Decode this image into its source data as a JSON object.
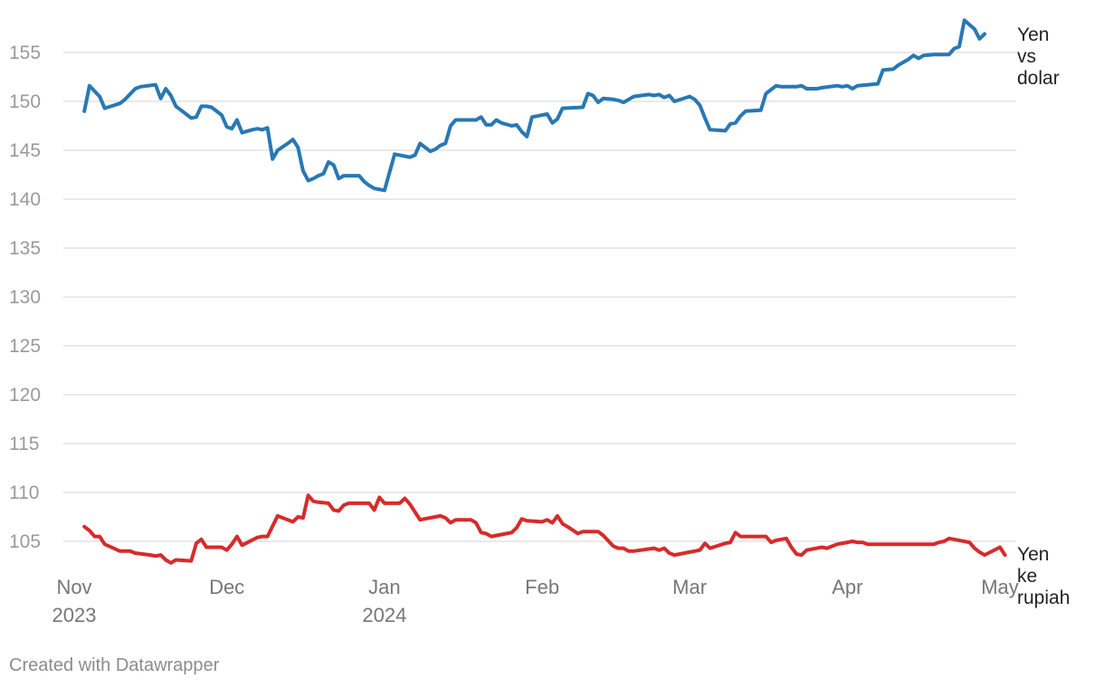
{
  "chart_data": {
    "type": "line",
    "title": "",
    "xlabel": "",
    "ylabel": "",
    "ylim": [
      101,
      159
    ],
    "yticks": [
      105,
      110,
      115,
      120,
      125,
      130,
      135,
      140,
      145,
      150,
      155
    ],
    "xlim": [
      0,
      182
    ],
    "xticks": [
      {
        "x": 0,
        "label": "Nov",
        "sublabel": "2023"
      },
      {
        "x": 30,
        "label": "Dec",
        "sublabel": ""
      },
      {
        "x": 61,
        "label": "Jan",
        "sublabel": "2024"
      },
      {
        "x": 92,
        "label": "Feb",
        "sublabel": ""
      },
      {
        "x": 121,
        "label": "Mar",
        "sublabel": ""
      },
      {
        "x": 152,
        "label": "Apr",
        "sublabel": ""
      },
      {
        "x": 182,
        "label": "May",
        "sublabel": ""
      }
    ],
    "grid": true,
    "series": [
      {
        "name": "Yen vs dolar",
        "label_lines": [
          "Yen",
          "vs",
          "dolar"
        ],
        "color": "#2878b4",
        "points": [
          [
            2,
            149
          ],
          [
            3,
            151.6
          ],
          [
            5,
            150.5
          ],
          [
            6,
            149.3
          ],
          [
            9,
            149.8
          ],
          [
            10,
            150.2
          ],
          [
            12,
            151.3
          ],
          [
            13,
            151.5
          ],
          [
            16,
            151.7
          ],
          [
            17,
            150.3
          ],
          [
            18,
            151.3
          ],
          [
            19,
            150.6
          ],
          [
            20,
            149.5
          ],
          [
            21,
            149.1
          ],
          [
            23,
            148.3
          ],
          [
            24,
            148.4
          ],
          [
            25,
            149.5
          ],
          [
            26,
            149.5
          ],
          [
            27,
            149.4
          ],
          [
            29,
            148.6
          ],
          [
            30,
            147.4
          ],
          [
            31,
            147.2
          ],
          [
            32,
            148.1
          ],
          [
            33,
            146.8
          ],
          [
            35,
            147.1
          ],
          [
            36,
            147.2
          ],
          [
            37,
            147.1
          ],
          [
            38,
            147.3
          ],
          [
            39,
            144.1
          ],
          [
            40,
            145
          ],
          [
            42,
            145.7
          ],
          [
            43,
            146.1
          ],
          [
            44,
            145.3
          ],
          [
            45,
            142.9
          ],
          [
            46,
            141.9
          ],
          [
            47,
            142.1
          ],
          [
            48,
            142.4
          ],
          [
            49,
            142.6
          ],
          [
            50,
            143.8
          ],
          [
            51,
            143.5
          ],
          [
            52,
            142.1
          ],
          [
            53,
            142.4
          ],
          [
            56,
            142.4
          ],
          [
            57,
            141.8
          ],
          [
            58,
            141.4
          ],
          [
            59,
            141.1
          ],
          [
            61,
            140.9
          ],
          [
            63,
            144.6
          ],
          [
            64,
            144.5
          ],
          [
            66,
            144.3
          ],
          [
            67,
            144.5
          ],
          [
            68,
            145.7
          ],
          [
            69,
            145.3
          ],
          [
            70,
            144.9
          ],
          [
            71,
            145.1
          ],
          [
            72,
            145.5
          ],
          [
            73,
            145.7
          ],
          [
            74,
            147.5
          ],
          [
            75,
            148.1
          ],
          [
            79,
            148.1
          ],
          [
            80,
            148.4
          ],
          [
            81,
            147.6
          ],
          [
            82,
            147.6
          ],
          [
            83,
            148.1
          ],
          [
            84,
            147.8
          ],
          [
            86,
            147.5
          ],
          [
            87,
            147.6
          ],
          [
            88,
            146.9
          ],
          [
            89,
            146.4
          ],
          [
            90,
            148.4
          ],
          [
            93,
            148.7
          ],
          [
            94,
            147.8
          ],
          [
            95,
            148.2
          ],
          [
            96,
            149.3
          ],
          [
            100,
            149.4
          ],
          [
            101,
            150.8
          ],
          [
            102,
            150.6
          ],
          [
            103,
            149.9
          ],
          [
            104,
            150.3
          ],
          [
            106,
            150.2
          ],
          [
            107,
            150.1
          ],
          [
            108,
            149.9
          ],
          [
            110,
            150.5
          ],
          [
            113,
            150.7
          ],
          [
            114,
            150.6
          ],
          [
            115,
            150.7
          ],
          [
            116,
            150.4
          ],
          [
            117,
            150.6
          ],
          [
            118,
            150
          ],
          [
            121,
            150.5
          ],
          [
            122,
            150.2
          ],
          [
            123,
            149.6
          ],
          [
            124,
            148.3
          ],
          [
            125,
            147.1
          ],
          [
            128,
            147
          ],
          [
            129,
            147.7
          ],
          [
            130,
            147.8
          ],
          [
            131,
            148.5
          ],
          [
            132,
            149
          ],
          [
            135,
            149.1
          ],
          [
            136,
            150.8
          ],
          [
            137,
            151.2
          ],
          [
            138,
            151.6
          ],
          [
            139,
            151.5
          ],
          [
            142,
            151.5
          ],
          [
            143,
            151.6
          ],
          [
            144,
            151.3
          ],
          [
            146,
            151.3
          ],
          [
            147,
            151.4
          ],
          [
            150,
            151.6
          ],
          [
            151,
            151.5
          ],
          [
            152,
            151.6
          ],
          [
            153,
            151.3
          ],
          [
            154,
            151.6
          ],
          [
            158,
            151.8
          ],
          [
            159,
            153.2
          ],
          [
            161,
            153.3
          ],
          [
            162,
            153.7
          ],
          [
            164,
            154.3
          ],
          [
            165,
            154.7
          ],
          [
            166,
            154.4
          ],
          [
            167,
            154.7
          ],
          [
            169,
            154.8
          ],
          [
            170,
            154.8
          ],
          [
            172,
            154.8
          ],
          [
            173,
            155.4
          ],
          [
            174,
            155.6
          ],
          [
            175,
            158.3
          ],
          [
            177,
            157.4
          ],
          [
            178,
            156.4
          ],
          [
            179,
            156.9
          ]
        ]
      },
      {
        "name": "Yen ke rupiah",
        "label_lines": [
          "Yen",
          "ke",
          "rupiah"
        ],
        "color": "#d62b2b",
        "points": [
          [
            2,
            106.5
          ],
          [
            3,
            106.1
          ],
          [
            4,
            105.5
          ],
          [
            5,
            105.5
          ],
          [
            6,
            104.7
          ],
          [
            9,
            104
          ],
          [
            10,
            104
          ],
          [
            11,
            104
          ],
          [
            12,
            103.8
          ],
          [
            15,
            103.6
          ],
          [
            16,
            103.5
          ],
          [
            17,
            103.6
          ],
          [
            18,
            103.1
          ],
          [
            19,
            102.8
          ],
          [
            20,
            103.1
          ],
          [
            23,
            103
          ],
          [
            24,
            104.8
          ],
          [
            25,
            105.2
          ],
          [
            26,
            104.4
          ],
          [
            29,
            104.4
          ],
          [
            30,
            104.1
          ],
          [
            31,
            104.7
          ],
          [
            32,
            105.5
          ],
          [
            33,
            104.6
          ],
          [
            36,
            105.4
          ],
          [
            37,
            105.5
          ],
          [
            38,
            105.5
          ],
          [
            40,
            107.6
          ],
          [
            42,
            107.2
          ],
          [
            43,
            107
          ],
          [
            44,
            107.5
          ],
          [
            45,
            107.4
          ],
          [
            46,
            109.7
          ],
          [
            47,
            109.1
          ],
          [
            48,
            109
          ],
          [
            50,
            108.9
          ],
          [
            51,
            108.2
          ],
          [
            52,
            108.1
          ],
          [
            53,
            108.7
          ],
          [
            54,
            108.9
          ],
          [
            58,
            108.9
          ],
          [
            59,
            108.2
          ],
          [
            60,
            109.5
          ],
          [
            61,
            108.9
          ],
          [
            64,
            108.9
          ],
          [
            65,
            109.4
          ],
          [
            66,
            108.8
          ],
          [
            68,
            107.2
          ],
          [
            72,
            107.6
          ],
          [
            73,
            107.4
          ],
          [
            74,
            106.9
          ],
          [
            75,
            107.2
          ],
          [
            78,
            107.2
          ],
          [
            79,
            106.9
          ],
          [
            80,
            105.9
          ],
          [
            81,
            105.8
          ],
          [
            82,
            105.5
          ],
          [
            85,
            105.8
          ],
          [
            86,
            105.9
          ],
          [
            87,
            106.4
          ],
          [
            88,
            107.3
          ],
          [
            89,
            107.1
          ],
          [
            92,
            107
          ],
          [
            93,
            107.2
          ],
          [
            94,
            106.9
          ],
          [
            95,
            107.6
          ],
          [
            96,
            106.8
          ],
          [
            97,
            106.5
          ],
          [
            99,
            105.8
          ],
          [
            100,
            106
          ],
          [
            103,
            106
          ],
          [
            104,
            105.6
          ],
          [
            106,
            104.5
          ],
          [
            107,
            104.3
          ],
          [
            108,
            104.3
          ],
          [
            109,
            104
          ],
          [
            110,
            104
          ],
          [
            114,
            104.3
          ],
          [
            115,
            104.1
          ],
          [
            116,
            104.3
          ],
          [
            117,
            103.8
          ],
          [
            118,
            103.6
          ],
          [
            122,
            104
          ],
          [
            123,
            104.1
          ],
          [
            124,
            104.8
          ],
          [
            125,
            104.3
          ],
          [
            128,
            104.8
          ],
          [
            129,
            104.9
          ],
          [
            130,
            105.9
          ],
          [
            131,
            105.5
          ],
          [
            136,
            105.5
          ],
          [
            137,
            104.9
          ],
          [
            138,
            105.1
          ],
          [
            140,
            105.3
          ],
          [
            141,
            104.4
          ],
          [
            142,
            103.7
          ],
          [
            143,
            103.6
          ],
          [
            144,
            104.1
          ],
          [
            147,
            104.4
          ],
          [
            148,
            104.3
          ],
          [
            149,
            104.5
          ],
          [
            150,
            104.7
          ],
          [
            152,
            104.9
          ],
          [
            153,
            105
          ],
          [
            154,
            104.9
          ],
          [
            155,
            104.9
          ],
          [
            156,
            104.7
          ],
          [
            169,
            104.7
          ],
          [
            170,
            104.9
          ],
          [
            171,
            105
          ],
          [
            172,
            105.3
          ],
          [
            173,
            105.2
          ],
          [
            174,
            105.1
          ],
          [
            176,
            104.9
          ],
          [
            177,
            104.3
          ],
          [
            178,
            103.9
          ],
          [
            179,
            103.6
          ],
          [
            182,
            104.4
          ],
          [
            183,
            103.6
          ]
        ]
      }
    ]
  },
  "credit": "Created with Datawrapper"
}
